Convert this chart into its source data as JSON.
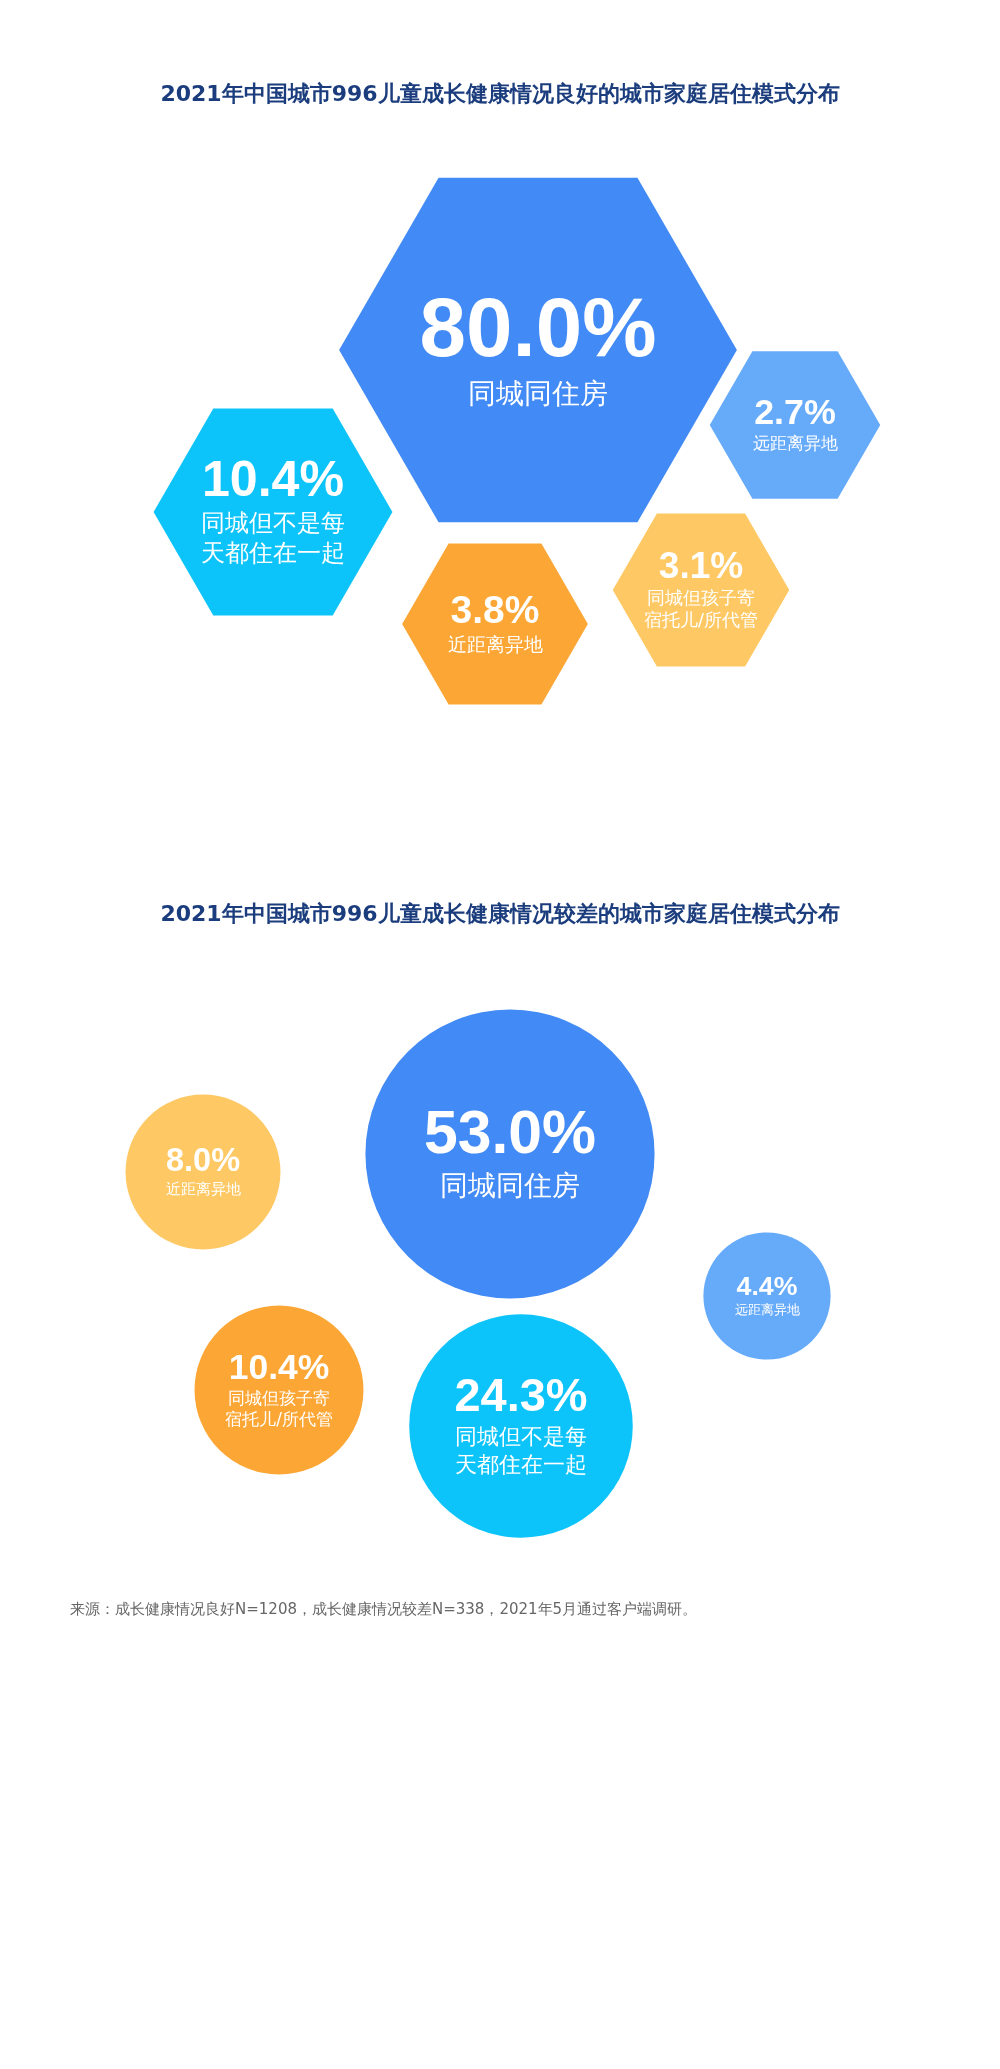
{
  "chart_data": [
    {
      "type": "other",
      "title": "2021年中国城市996儿童成长健康情况良好的城市家庭居住模式分布",
      "categories": [
        "同城同住房",
        "同城但不是每天都住在一起",
        "近距离异地",
        "同城但孩子寄宿托儿/所代管",
        "远距离异地"
      ],
      "values": [
        80.0,
        10.4,
        3.8,
        3.1,
        2.7
      ],
      "value_labels": [
        "80.0%",
        "10.4%",
        "3.8%",
        "3.1%",
        "2.7%"
      ],
      "colors": [
        "#428af5",
        "#0cc4fa",
        "#fca735",
        "#fec965",
        "#66aafa"
      ]
    },
    {
      "type": "other",
      "title": "2021年中国城市996儿童成长健康情况较差的城市家庭居住模式分布",
      "categories": [
        "同城同住房",
        "同城但不是每天都住在一起",
        "同城但孩子寄宿托儿/所代管",
        "近距离异地",
        "远距离异地"
      ],
      "values": [
        53.0,
        24.3,
        10.4,
        8.0,
        4.4
      ],
      "value_labels": [
        "53.0%",
        "24.3%",
        "10.4%",
        "8.0%",
        "4.4%"
      ],
      "colors": [
        "#428af5",
        "#0cc4fa",
        "#fca735",
        "#fec965",
        "#66aafa"
      ],
      "annotations": [
        "来源：成长健康情况良好N=1208，成长健康情况较差N=338，2021年5月通过客户端调研。"
      ]
    }
  ]
}
